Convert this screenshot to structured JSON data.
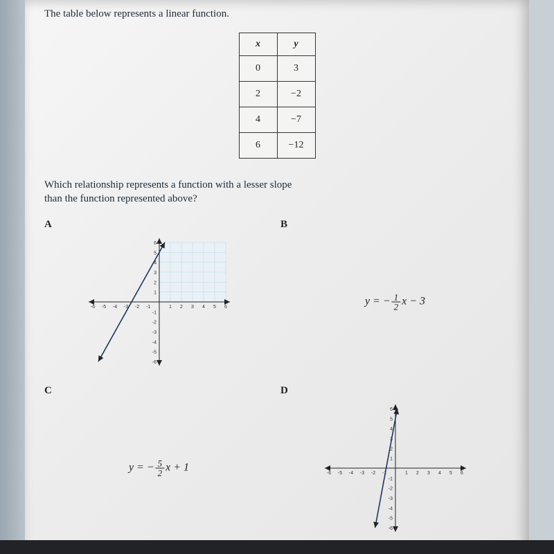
{
  "prompt": "The table below represents a linear function.",
  "table": {
    "headers": [
      "x",
      "y"
    ],
    "rows": [
      [
        "0",
        "3"
      ],
      [
        "2",
        "−2"
      ],
      [
        "4",
        "−7"
      ],
      [
        "6",
        "−12"
      ]
    ],
    "border_color": "#333333",
    "bg_color": "#f4f4f2",
    "header_italic": true
  },
  "question_line1": "Which relationship represents a function with a lesser slope",
  "question_line2": "than the function represented above?",
  "choices": {
    "A": {
      "type": "graph",
      "xlim": [
        -6,
        6
      ],
      "ylim": [
        -6,
        6
      ],
      "xticks": [
        -6,
        -5,
        -4,
        -3,
        -2,
        -1,
        1,
        2,
        3,
        4,
        5,
        6
      ],
      "yticks": [
        1,
        2,
        3,
        4,
        5,
        6,
        -1,
        -2,
        -3,
        -4,
        -5,
        -6
      ],
      "grid_color": "#bcd3e6",
      "axis_color": "#222222",
      "line_color": "#1b365d",
      "line_slope": 2,
      "line_intercept": 5,
      "bg": "#e9f1f6"
    },
    "B": {
      "type": "equation",
      "prefix": "y = −",
      "frac_num": "1",
      "frac_den": "2",
      "suffix": "x − 3"
    },
    "C": {
      "type": "equation",
      "prefix": "y = −",
      "frac_num": "5",
      "frac_den": "2",
      "suffix": "x + 1"
    },
    "D": {
      "type": "graph",
      "xlim": [
        -6,
        6
      ],
      "ylim": [
        -6,
        6
      ],
      "xticks": [
        -6,
        -5,
        -4,
        -3,
        -2,
        -1,
        1,
        2,
        3,
        4,
        5,
        6
      ],
      "yticks": [
        1,
        2,
        3,
        4,
        5,
        6,
        -1,
        -2,
        -3,
        -4,
        -5,
        -6
      ],
      "grid_color": "#bcd3e6",
      "axis_color": "#222222",
      "line_color": "#1b365d",
      "line_slope": 6,
      "line_intercept": 5,
      "bg": "#ffffff"
    }
  },
  "labels": {
    "A": "A",
    "B": "B",
    "C": "C",
    "D": "D"
  },
  "colors": {
    "page_bg": "#ececec",
    "outer_bg": "#c8d0d6",
    "text": "#1f2a36"
  }
}
